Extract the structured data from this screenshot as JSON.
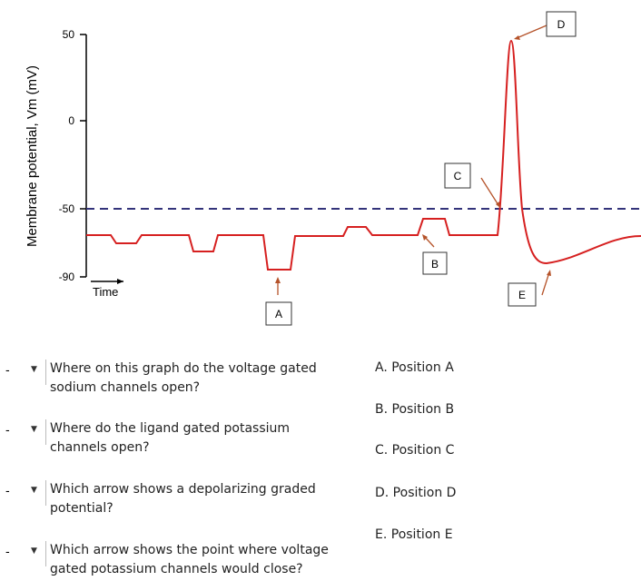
{
  "graph": {
    "y_axis_label": "Membrane potential, Vm (mV)",
    "y_tick_labels": [
      "50",
      "0",
      "-50",
      "-90"
    ],
    "x_axis_label": "Time",
    "markers": [
      "A",
      "B",
      "C",
      "D",
      "E"
    ]
  },
  "questions": [
    {
      "placeholder": "-",
      "text": "Where on this graph do the voltage gated sodium channels open?"
    },
    {
      "placeholder": "-",
      "text": "Where do the ligand gated potassium channels open?"
    },
    {
      "placeholder": "-",
      "text": "Which arrow shows a depolarizing graded potential?"
    },
    {
      "placeholder": "-",
      "text": "Which arrow shows the point where voltage gated potassium channels would close?"
    }
  ],
  "options": [
    "A. Position A",
    "B. Position B",
    "C. Position C",
    "D. Position D",
    "E. Position E"
  ]
}
